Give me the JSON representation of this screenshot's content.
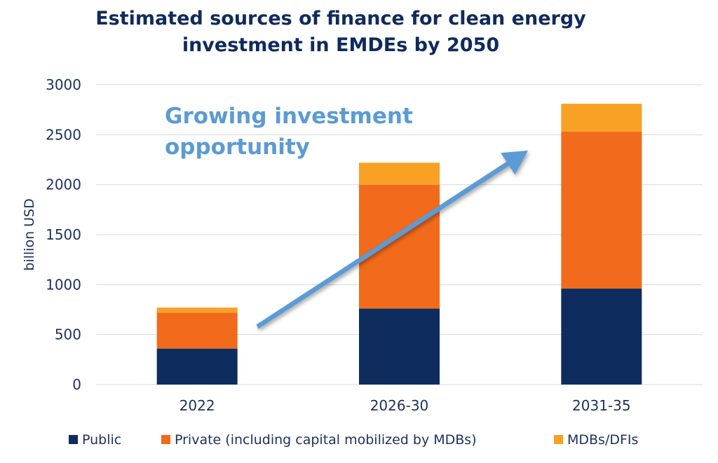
{
  "chart_data": {
    "type": "bar",
    "stacked": true,
    "title": [
      "Estimated sources of finance for clean energy",
      "investment in EMDEs by 2050"
    ],
    "ylabel": "billion USD",
    "ylim": [
      0,
      3000
    ],
    "yticks": [
      0,
      500,
      1000,
      1500,
      2000,
      2500,
      3000
    ],
    "grid": true,
    "legend_position": "bottom",
    "categories": [
      "2022",
      "2026-30",
      "2031-35"
    ],
    "series": [
      {
        "name": "Public",
        "color": "#0e2d5e",
        "values": [
          360,
          760,
          960
        ]
      },
      {
        "name": "Private (including capital mobilized by MDBs)",
        "color": "#f26a1b",
        "values": [
          360,
          1240,
          1570
        ]
      },
      {
        "name": "MDBs/DFIs",
        "color": "#f8a125",
        "values": [
          50,
          220,
          280
        ]
      }
    ],
    "annotation": {
      "lines": [
        "Growing investment",
        "opportunity"
      ],
      "color": "#5b9bd5",
      "arrow": true
    }
  }
}
